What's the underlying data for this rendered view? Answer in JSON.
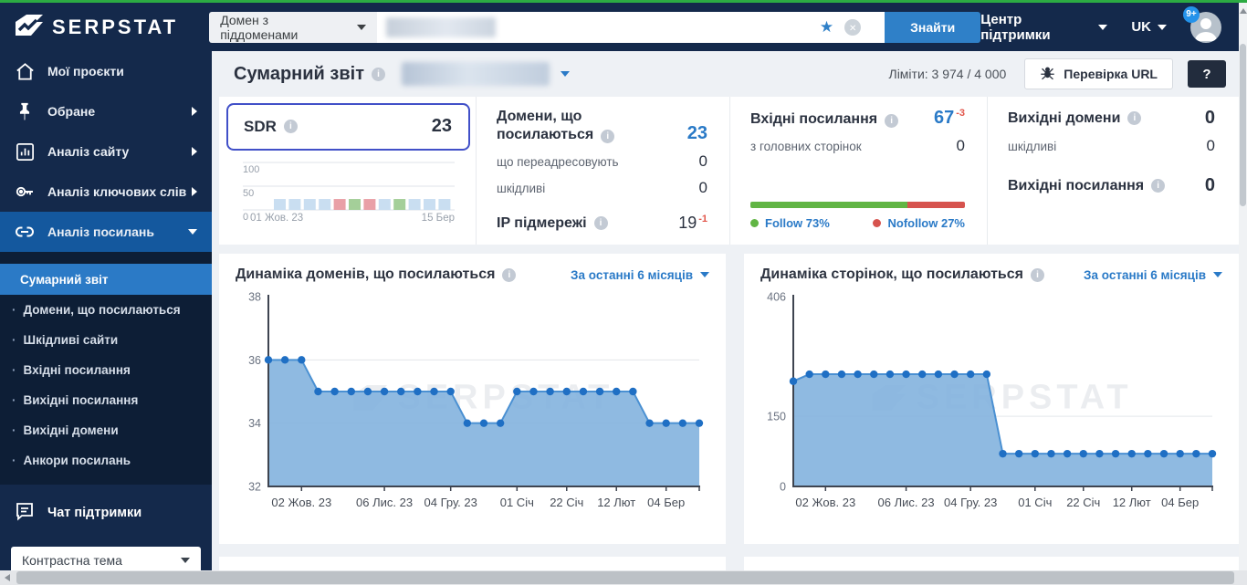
{
  "colors": {
    "accent_blue": "#2a7ac7",
    "button_blue": "#2f80c8",
    "navy": "#14294b",
    "green_topbar": "#2cab43",
    "follow_green": "#61b544",
    "nofollow_red": "#d6534e",
    "delta_red": "#e2574c",
    "sdr_focus": "#4150c8"
  },
  "header": {
    "logo": "SERPSTAT",
    "search_type": "Домен з піддоменами",
    "search_value": "",
    "search_button": "Знайти",
    "support_center": "Центр підтримки",
    "language": "UK",
    "notifications_badge": "9+"
  },
  "sidebar": {
    "items": [
      {
        "label": "Мої проєкти",
        "icon": "home-icon",
        "chevron": null,
        "active": false
      },
      {
        "label": "Обране",
        "icon": "pin-icon",
        "chevron": "right",
        "active": false
      },
      {
        "label": "Аналіз сайту",
        "icon": "site-analysis-icon",
        "chevron": "right",
        "active": false
      },
      {
        "label": "Аналіз ключових слів",
        "icon": "keywords-icon",
        "chevron": "right",
        "active": false
      },
      {
        "label": "Аналіз посилань",
        "icon": "link-icon",
        "chevron": "down",
        "active": true
      }
    ],
    "submenu": {
      "bullet": "·",
      "active_index": 0,
      "items": [
        "Сумарний звіт",
        "Домени, що посилаються",
        "Шкідливі сайти",
        "Вхідні посилання",
        "Вихідні посилання",
        "Вихідні домени",
        "Анкори посилань"
      ]
    },
    "chat_support": "Чат підтримки",
    "theme_select": "Контрастна тема"
  },
  "page": {
    "title": "Сумарний звіт",
    "limits": "Ліміти: 3 974 / 4 000",
    "check_url_button": "Перевірка URL",
    "help_button": "?"
  },
  "stats": {
    "sdr": {
      "label": "SDR",
      "value": "23"
    },
    "referring_domains": {
      "title": "Домени, що посилаються",
      "value": "23",
      "rows": [
        {
          "label": "що переадресовують",
          "value": "0"
        },
        {
          "label": "шкідливі",
          "value": "0"
        }
      ],
      "ip": {
        "label": "IP підмережі",
        "value": "19",
        "delta": "-1"
      }
    },
    "backlinks": {
      "title": "Вхідні посилання",
      "value": "67",
      "delta": "-3",
      "rows": [
        {
          "label": "з головних сторінок",
          "value": "0"
        }
      ],
      "follow_pct": 73,
      "nofollow_pct": 27,
      "follow_label": "Follow 73%",
      "nofollow_label": "Nofollow 27%"
    },
    "outbound": {
      "domains_title": "Вихідні домени",
      "domains_value": "0",
      "rows": [
        {
          "label": "шкідливі",
          "value": "0"
        }
      ],
      "links_title": "Вихідні посилання",
      "links_value": "0"
    }
  },
  "watermark": "SERPSTAT",
  "chart_data": [
    {
      "type": "bar",
      "name": "sdr-history",
      "ylim": [
        0,
        100
      ],
      "yticks": [
        100,
        50,
        0
      ],
      "x_range_labels": [
        "01 Жов. 23",
        "15 Бер"
      ],
      "values": [
        23,
        23,
        23,
        23,
        23,
        23,
        23,
        23,
        23,
        23,
        23,
        23
      ],
      "bar_colors": [
        "blue",
        "blue",
        "blue",
        "blue",
        "red",
        "green",
        "red",
        "blue",
        "green",
        "blue",
        "blue",
        "blue"
      ],
      "palette": {
        "blue": "#c9def1",
        "red": "#e9a0a7",
        "green": "#a4cf99"
      }
    },
    {
      "type": "area",
      "title": "Динаміка доменів, що посилаються",
      "period": "За останні 6 місяців",
      "ylim": [
        32,
        38
      ],
      "yticks": [
        32,
        34,
        36,
        38
      ],
      "x_tick_labels": [
        "02 Жов. 23",
        "06 Лис. 23",
        "04 Гру. 23",
        "01 Січ",
        "22 Січ",
        "12 Лют",
        "04 Бер"
      ],
      "tick_indices": [
        2,
        7,
        11,
        15,
        18,
        21,
        24
      ],
      "values": [
        36,
        36,
        36,
        35,
        35,
        35,
        35,
        35,
        35,
        35,
        35,
        35,
        34,
        34,
        34,
        35,
        35,
        35,
        35,
        35,
        35,
        35,
        35,
        34,
        34,
        34,
        34
      ],
      "fill": "#7fb1dd",
      "line": "#4a90d2",
      "dot": "#1f6fc4",
      "grid": true,
      "legend": false
    },
    {
      "type": "area",
      "title": "Динаміка сторінок, що посилаються",
      "period": "За останні 6 місяців",
      "ylim": [
        0,
        406
      ],
      "yticks": [
        0,
        150,
        406
      ],
      "x_tick_labels": [
        "02 Жов. 23",
        "06 Лис. 23",
        "04 Гру. 23",
        "01 Січ",
        "22 Січ",
        "12 Лют",
        "04 Бер"
      ],
      "tick_indices": [
        2,
        7,
        11,
        15,
        18,
        21,
        24
      ],
      "values": [
        225,
        240,
        240,
        240,
        240,
        240,
        240,
        240,
        240,
        240,
        240,
        240,
        240,
        70,
        70,
        70,
        70,
        70,
        70,
        70,
        70,
        70,
        70,
        70,
        70,
        70,
        70
      ],
      "fill": "#7fb1dd",
      "line": "#4a90d2",
      "dot": "#1f6fc4",
      "grid": true,
      "legend": false
    }
  ]
}
